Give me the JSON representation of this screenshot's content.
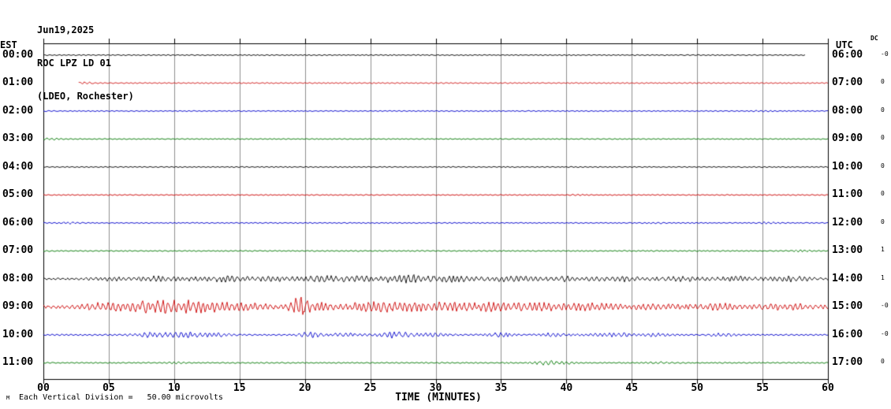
{
  "header": {
    "date": "Jun19,2025",
    "station": "ROC LPZ LD 01",
    "network": "(LDEO, Rochester)"
  },
  "axes": {
    "left_label": "EST",
    "right_label": "UTC",
    "dc_label": "DC",
    "x_title": "TIME (MINUTES)",
    "x_tick_interval_minutes": 5,
    "x_ticks": [
      "00",
      "05",
      "10",
      "15",
      "20",
      "25",
      "30",
      "35",
      "40",
      "45",
      "50",
      "55",
      "60"
    ]
  },
  "footer": {
    "corner_mark": "M",
    "scale_note": "Each Vertical Division =   50.00 microvolts"
  },
  "chart_data": {
    "type": "line",
    "title": "ROC LPZ LD 01 (LDEO, Rochester) helicorder Jun19,2025",
    "x_range_minutes": [
      0,
      60
    ],
    "minutes_per_row": 60,
    "row_duration": "1 hour",
    "vertical_division_microvolts": 50.0,
    "grid": true,
    "colors": {
      "black": "#000000",
      "red": "#cc0000",
      "blue": "#0000cc",
      "green": "#007700"
    },
    "rows": [
      {
        "est": "00:00",
        "utc": "06:00",
        "dc": "-0",
        "color": "#000000",
        "start_min": 0,
        "end_min": 58.3,
        "noise_amp": 0.7,
        "events": []
      },
      {
        "est": "01:00",
        "utc": "07:00",
        "dc": "0",
        "color": "#cc0000",
        "start_min": 2.7,
        "end_min": 60,
        "noise_amp": 0.7,
        "events": [
          {
            "center": 3.1,
            "width": 0.4,
            "amp": 1.2
          }
        ]
      },
      {
        "est": "02:00",
        "utc": "08:00",
        "dc": "0",
        "color": "#0000cc",
        "start_min": 0,
        "end_min": 60,
        "noise_amp": 0.7,
        "events": [
          {
            "center": 55,
            "width": 0.5,
            "amp": 0.8
          }
        ]
      },
      {
        "est": "03:00",
        "utc": "09:00",
        "dc": "0",
        "color": "#007700",
        "start_min": 0,
        "end_min": 60,
        "noise_amp": 0.7,
        "events": [
          {
            "center": 0.6,
            "width": 0.5,
            "amp": 1.0
          }
        ]
      },
      {
        "est": "04:00",
        "utc": "10:00",
        "dc": "0",
        "color": "#000000",
        "start_min": 0,
        "end_min": 60,
        "noise_amp": 0.7,
        "events": []
      },
      {
        "est": "05:00",
        "utc": "11:00",
        "dc": "0",
        "color": "#cc0000",
        "start_min": 0,
        "end_min": 60,
        "noise_amp": 0.7,
        "events": [
          {
            "center": 41,
            "width": 0.4,
            "amp": 0.8
          }
        ]
      },
      {
        "est": "06:00",
        "utc": "12:00",
        "dc": "0",
        "color": "#0000cc",
        "start_min": 0,
        "end_min": 60,
        "noise_amp": 0.75,
        "events": [
          {
            "center": 2,
            "width": 0.5,
            "amp": 1.0
          },
          {
            "center": 47,
            "width": 0.4,
            "amp": 0.8
          },
          {
            "center": 55.5,
            "width": 0.5,
            "amp": 1.2
          }
        ]
      },
      {
        "est": "07:00",
        "utc": "13:00",
        "dc": "1",
        "color": "#007700",
        "start_min": 0,
        "end_min": 60,
        "noise_amp": 0.8,
        "events": [
          {
            "center": 58,
            "width": 0.5,
            "amp": 0.9
          }
        ]
      },
      {
        "est": "08:00",
        "utc": "14:00",
        "dc": "1",
        "color": "#000000",
        "start_min": 0,
        "end_min": 60,
        "noise_amp": 1.4,
        "events": [
          {
            "center": 5,
            "width": 1.0,
            "amp": 2.0
          },
          {
            "center": 9,
            "width": 1.3,
            "amp": 3.0
          },
          {
            "center": 14,
            "width": 1.8,
            "amp": 3.2
          },
          {
            "center": 18,
            "width": 1.0,
            "amp": 2.8
          },
          {
            "center": 21.5,
            "width": 1.4,
            "amp": 3.2
          },
          {
            "center": 24.5,
            "width": 1.0,
            "amp": 2.8
          },
          {
            "center": 27.5,
            "width": 1.0,
            "amp": 5.5
          },
          {
            "center": 31,
            "width": 1.4,
            "amp": 3.8
          },
          {
            "center": 36,
            "width": 1.5,
            "amp": 3.0
          },
          {
            "center": 40,
            "width": 1.0,
            "amp": 2.8
          },
          {
            "center": 44,
            "width": 1.4,
            "amp": 2.8
          },
          {
            "center": 49,
            "width": 1.4,
            "amp": 2.4
          },
          {
            "center": 53,
            "width": 1.0,
            "amp": 2.4
          },
          {
            "center": 57,
            "width": 1.4,
            "amp": 2.8
          }
        ]
      },
      {
        "est": "09:00",
        "utc": "15:00",
        "dc": "-0",
        "color": "#cc0000",
        "start_min": 0,
        "end_min": 60,
        "noise_amp": 2.2,
        "events": [
          {
            "center": 4,
            "width": 1.0,
            "amp": 3.0
          },
          {
            "center": 7,
            "width": 1.4,
            "amp": 5.0
          },
          {
            "center": 10,
            "width": 1.4,
            "amp": 6.5
          },
          {
            "center": 13,
            "width": 1.4,
            "amp": 5.0
          },
          {
            "center": 16,
            "width": 1.0,
            "amp": 4.0
          },
          {
            "center": 19.5,
            "width": 0.45,
            "amp": 12.0
          },
          {
            "center": 21,
            "width": 0.8,
            "amp": 5.0
          },
          {
            "center": 25,
            "width": 1.2,
            "amp": 6.5
          },
          {
            "center": 28,
            "width": 1.2,
            "amp": 5.0
          },
          {
            "center": 31,
            "width": 1.4,
            "amp": 4.2
          },
          {
            "center": 34.5,
            "width": 1.2,
            "amp": 4.2
          },
          {
            "center": 38,
            "width": 1.4,
            "amp": 3.8
          },
          {
            "center": 42,
            "width": 1.4,
            "amp": 3.4
          },
          {
            "center": 47,
            "width": 1.4,
            "amp": 3.0
          },
          {
            "center": 52,
            "width": 1.4,
            "amp": 3.0
          },
          {
            "center": 57,
            "width": 1.4,
            "amp": 3.2
          }
        ]
      },
      {
        "est": "10:00",
        "utc": "16:00",
        "dc": "-0",
        "color": "#0000cc",
        "start_min": 0,
        "end_min": 60,
        "noise_amp": 1.1,
        "events": [
          {
            "center": 8,
            "width": 1.0,
            "amp": 2.4
          },
          {
            "center": 10.5,
            "width": 1.0,
            "amp": 3.4
          },
          {
            "center": 13,
            "width": 0.8,
            "amp": 2.4
          },
          {
            "center": 20.5,
            "width": 0.6,
            "amp": 3.8
          },
          {
            "center": 23,
            "width": 0.8,
            "amp": 2.0
          },
          {
            "center": 27,
            "width": 1.1,
            "amp": 3.4
          },
          {
            "center": 30,
            "width": 0.8,
            "amp": 2.0
          },
          {
            "center": 35,
            "width": 0.7,
            "amp": 2.4
          },
          {
            "center": 39,
            "width": 0.8,
            "amp": 1.8
          },
          {
            "center": 43.5,
            "width": 1.1,
            "amp": 2.8
          },
          {
            "center": 47,
            "width": 0.8,
            "amp": 1.8
          },
          {
            "center": 52,
            "width": 0.8,
            "amp": 1.5
          }
        ]
      },
      {
        "est": "11:00",
        "utc": "17:00",
        "dc": "0",
        "color": "#007700",
        "start_min": 0,
        "end_min": 60,
        "noise_amp": 0.85,
        "events": [
          {
            "center": 10,
            "width": 0.5,
            "amp": 0.8
          },
          {
            "center": 38.5,
            "width": 0.7,
            "amp": 2.4
          },
          {
            "center": 40,
            "width": 0.5,
            "amp": 1.4
          },
          {
            "center": 47,
            "width": 0.5,
            "amp": 1.2
          }
        ]
      }
    ]
  }
}
